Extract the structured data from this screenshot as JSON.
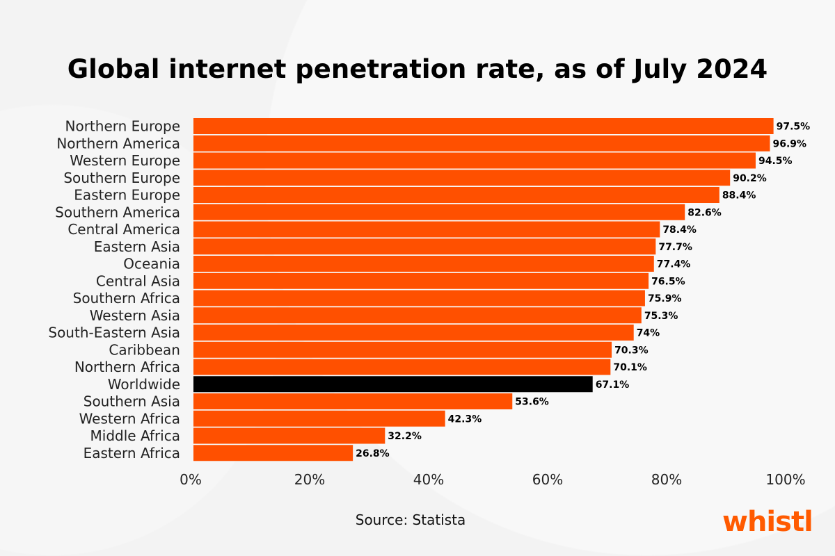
{
  "chart_data": {
    "type": "bar",
    "orientation": "horizontal",
    "title": "Global internet penetration rate, as of July 2024",
    "categories": [
      "Northern Europe",
      "Northern America",
      "Western Europe",
      "Southern Europe",
      "Eastern Europe",
      "Southern America",
      "Central America",
      "Eastern Asia",
      "Oceania",
      "Central Asia",
      "Southern Africa",
      "Western Asia",
      "South-Eastern Asia",
      "Caribbean",
      "Northern Africa",
      "Worldwide",
      "Southern Asia",
      "Western Africa",
      "Middle Africa",
      "Eastern Africa"
    ],
    "values": [
      97.5,
      96.9,
      94.5,
      90.2,
      88.4,
      82.6,
      78.4,
      77.7,
      77.4,
      76.5,
      75.9,
      75.3,
      74,
      70.3,
      70.1,
      67.1,
      53.6,
      42.3,
      32.2,
      26.8
    ],
    "data_labels": [
      "97.5%",
      "96.9%",
      "94.5%",
      "90.2%",
      "88.4%",
      "82.6%",
      "78.4%",
      "77.7%",
      "77.4%",
      "76.5%",
      "75.9%",
      "75.3%",
      "74%",
      "70.3%",
      "70.1%",
      "67.1%",
      "53.6%",
      "42.3%",
      "32.2%",
      "26.8%"
    ],
    "highlight": "Worldwide",
    "xlim": [
      0,
      100
    ],
    "xticks": [
      "0%",
      "20%",
      "40%",
      "60%",
      "80%",
      "100%"
    ],
    "grid": false,
    "colors": {
      "bar": "#ff5000",
      "highlight": "#000000"
    }
  },
  "source": "Source: Statista",
  "logo": "whistl"
}
